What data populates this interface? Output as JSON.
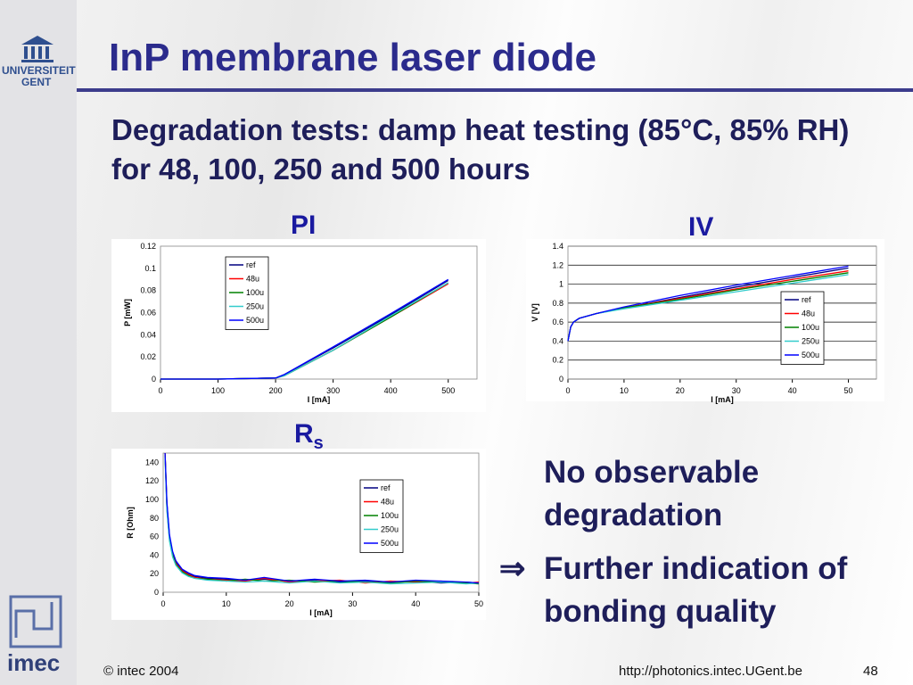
{
  "header": {
    "title": "InP membrane laser diode",
    "subtitle": "Degradation tests: damp heat testing (85°C, 85% RH) for 48, 100, 250 and 500 hours"
  },
  "logo": {
    "university": "UNIVERSITEIT",
    "city": "GENT",
    "imec": "imec"
  },
  "bullets": [
    "No observable degradation",
    "Further indication of bonding quality"
  ],
  "arrow": "⇒",
  "footer": {
    "copyright": "© intec 2004",
    "url": "http://photonics.intec.UGent.be",
    "page": "48"
  },
  "chart_data": [
    {
      "type": "line",
      "title": "PI",
      "x_label": "I [mA]",
      "y_label": "P [mW]",
      "x": [
        0,
        100,
        200,
        215,
        300,
        400,
        500
      ],
      "series": [
        {
          "name": "ref",
          "color": "#000080",
          "values": [
            0,
            0,
            0.001,
            0.004,
            0.028,
            0.058,
            0.089
          ]
        },
        {
          "name": "48u",
          "color": "#ff0000",
          "values": [
            0,
            0,
            0.001,
            0.003,
            0.026,
            0.056,
            0.086
          ]
        },
        {
          "name": "100u",
          "color": "#008000",
          "values": [
            0,
            0,
            0.001,
            0.003,
            0.026,
            0.056,
            0.087
          ]
        },
        {
          "name": "250u",
          "color": "#33cccc",
          "values": [
            0,
            0,
            0.001,
            0.003,
            0.026,
            0.057,
            0.087
          ]
        },
        {
          "name": "500u",
          "color": "#0000ff",
          "values": [
            0,
            0,
            0.001,
            0.004,
            0.029,
            0.059,
            0.09
          ]
        }
      ],
      "xlim": [
        0,
        550
      ],
      "ylim": [
        0,
        0.12
      ],
      "xticks": [
        0,
        100,
        200,
        300,
        400,
        500
      ],
      "yticks": [
        0,
        0.02,
        0.04,
        0.06,
        0.08,
        0.1,
        0.12
      ],
      "grid": false
    },
    {
      "type": "line",
      "title": "IV",
      "x_label": "I [mA]",
      "y_label": "V [V]",
      "x": [
        0,
        0.5,
        1,
        2,
        5,
        10,
        20,
        30,
        40,
        50
      ],
      "series": [
        {
          "name": "ref",
          "color": "#000080",
          "values": [
            0.4,
            0.55,
            0.6,
            0.64,
            0.69,
            0.75,
            0.86,
            0.97,
            1.07,
            1.17
          ]
        },
        {
          "name": "48u",
          "color": "#ff0000",
          "values": [
            0.4,
            0.55,
            0.6,
            0.64,
            0.69,
            0.75,
            0.85,
            0.95,
            1.05,
            1.14
          ]
        },
        {
          "name": "100u",
          "color": "#008000",
          "values": [
            0.4,
            0.55,
            0.6,
            0.64,
            0.69,
            0.75,
            0.84,
            0.94,
            1.03,
            1.12
          ]
        },
        {
          "name": "250u",
          "color": "#33cccc",
          "values": [
            0.4,
            0.55,
            0.6,
            0.64,
            0.69,
            0.74,
            0.83,
            0.92,
            1.01,
            1.1
          ]
        },
        {
          "name": "500u",
          "color": "#0000ff",
          "values": [
            0.4,
            0.55,
            0.6,
            0.64,
            0.69,
            0.76,
            0.88,
            0.99,
            1.09,
            1.19
          ]
        }
      ],
      "xlim": [
        0,
        55
      ],
      "ylim": [
        0,
        1.4
      ],
      "xticks": [
        0,
        10,
        20,
        30,
        40,
        50
      ],
      "yticks": [
        0,
        0.2,
        0.4,
        0.6,
        0.8,
        1,
        1.2,
        1.4
      ],
      "grid": true
    },
    {
      "type": "line",
      "title": "R",
      "title_subscript": "s",
      "x_label": "I [mA]",
      "y_label": "R [Ohm]",
      "x": [
        0.3,
        0.6,
        1,
        1.5,
        2,
        3,
        4,
        5,
        7,
        10,
        13,
        16,
        20,
        24,
        28,
        32,
        36,
        40,
        44,
        48,
        50
      ],
      "series": [
        {
          "name": "ref",
          "color": "#000080",
          "values": [
            150,
            95,
            60,
            42,
            33,
            24,
            20,
            17,
            15,
            14,
            13,
            14,
            12,
            13,
            11,
            12,
            11,
            12,
            10,
            11,
            10
          ]
        },
        {
          "name": "48u",
          "color": "#ff0000",
          "values": [
            150,
            92,
            58,
            40,
            31,
            23,
            19,
            16,
            14,
            13,
            12,
            15,
            11,
            12,
            13,
            10,
            12,
            11,
            12,
            10,
            11
          ]
        },
        {
          "name": "100u",
          "color": "#008000",
          "values": [
            148,
            90,
            57,
            40,
            30,
            22,
            18,
            15,
            14,
            12,
            14,
            12,
            13,
            11,
            12,
            11,
            10,
            12,
            11,
            10,
            9
          ]
        },
        {
          "name": "250u",
          "color": "#33cccc",
          "values": [
            145,
            88,
            55,
            38,
            29,
            21,
            17,
            15,
            13,
            12,
            11,
            12,
            10,
            12,
            10,
            11,
            9,
            10,
            11,
            9,
            10
          ]
        },
        {
          "name": "500u",
          "color": "#0000ff",
          "values": [
            150,
            97,
            62,
            44,
            34,
            25,
            21,
            18,
            16,
            15,
            13,
            16,
            12,
            14,
            12,
            13,
            11,
            13,
            12,
            11,
            10
          ]
        }
      ],
      "xlim": [
        0,
        50
      ],
      "ylim": [
        0,
        150
      ],
      "xticks": [
        0,
        10,
        20,
        30,
        40,
        50
      ],
      "yticks": [
        0,
        20,
        40,
        60,
        80,
        100,
        120,
        140
      ],
      "grid": false
    }
  ]
}
